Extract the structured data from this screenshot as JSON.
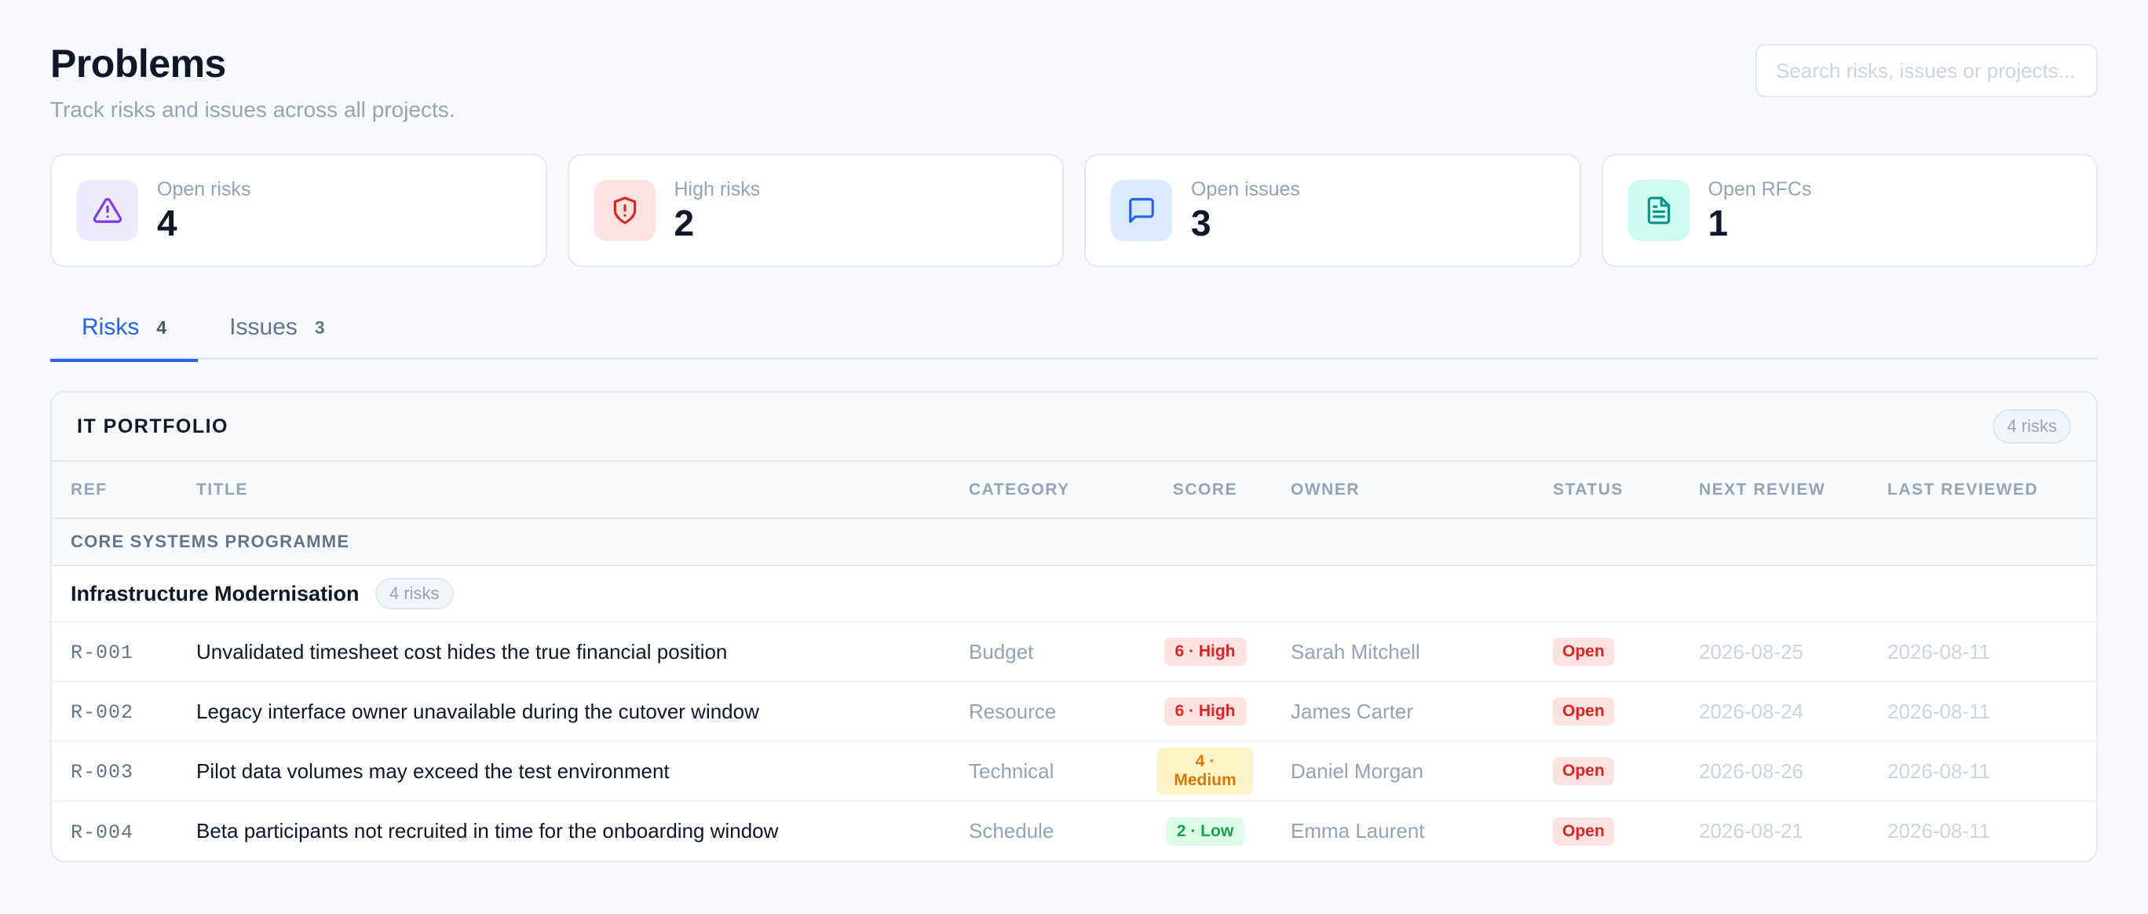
{
  "header": {
    "title": "Problems",
    "subtitle": "Track risks and issues across all projects.",
    "search_placeholder": "Search risks, issues or projects..."
  },
  "stats": [
    {
      "label": "Open risks",
      "value": "4",
      "icon": "alert-triangle-icon",
      "bg": "#ede9fe",
      "color": "#7c3aed"
    },
    {
      "label": "High risks",
      "value": "2",
      "icon": "shield-alert-icon",
      "bg": "#fee2e2",
      "color": "#dc2626"
    },
    {
      "label": "Open issues",
      "value": "3",
      "icon": "message-square-icon",
      "bg": "#dbeafe",
      "color": "#2563eb"
    },
    {
      "label": "Open RFCs",
      "value": "1",
      "icon": "file-text-icon",
      "bg": "#ccfbf1",
      "color": "#0d9488"
    }
  ],
  "tabs": [
    {
      "label": "Risks",
      "count": "4",
      "active": true
    },
    {
      "label": "Issues",
      "count": "3",
      "active": false
    }
  ],
  "portfolio": {
    "title": "IT PORTFOLIO",
    "count_label": "4 risks",
    "columns": {
      "ref": "REF",
      "title": "TITLE",
      "category": "CATEGORY",
      "score": "SCORE",
      "owner": "OWNER",
      "status": "STATUS",
      "next_review": "NEXT REVIEW",
      "last_reviewed": "LAST REVIEWED"
    },
    "programme": "CORE SYSTEMS PROGRAMME",
    "project": {
      "name": "Infrastructure Modernisation",
      "count_label": "4 risks"
    },
    "risks": [
      {
        "ref": "R-001",
        "title": "Unvalidated timesheet cost hides the true financial position",
        "category": "Budget",
        "score": "6 · High",
        "level": "high",
        "owner": "Sarah Mitchell",
        "status": "Open",
        "next_review": "2026-08-25",
        "last_reviewed": "2026-08-11"
      },
      {
        "ref": "R-002",
        "title": "Legacy interface owner unavailable during the cutover window",
        "category": "Resource",
        "score": "6 · High",
        "level": "high",
        "owner": "James Carter",
        "status": "Open",
        "next_review": "2026-08-24",
        "last_reviewed": "2026-08-11"
      },
      {
        "ref": "R-003",
        "title": "Pilot data volumes may exceed the test environment",
        "category": "Technical",
        "score": "4 · Medium",
        "level": "medium",
        "owner": "Daniel Morgan",
        "status": "Open",
        "next_review": "2026-08-26",
        "last_reviewed": "2026-08-11"
      },
      {
        "ref": "R-004",
        "title": "Beta participants not recruited in time for the onboarding window",
        "category": "Schedule",
        "score": "2 · Low",
        "level": "low",
        "owner": "Emma Laurent",
        "status": "Open",
        "next_review": "2026-08-21",
        "last_reviewed": "2026-08-11"
      }
    ]
  }
}
